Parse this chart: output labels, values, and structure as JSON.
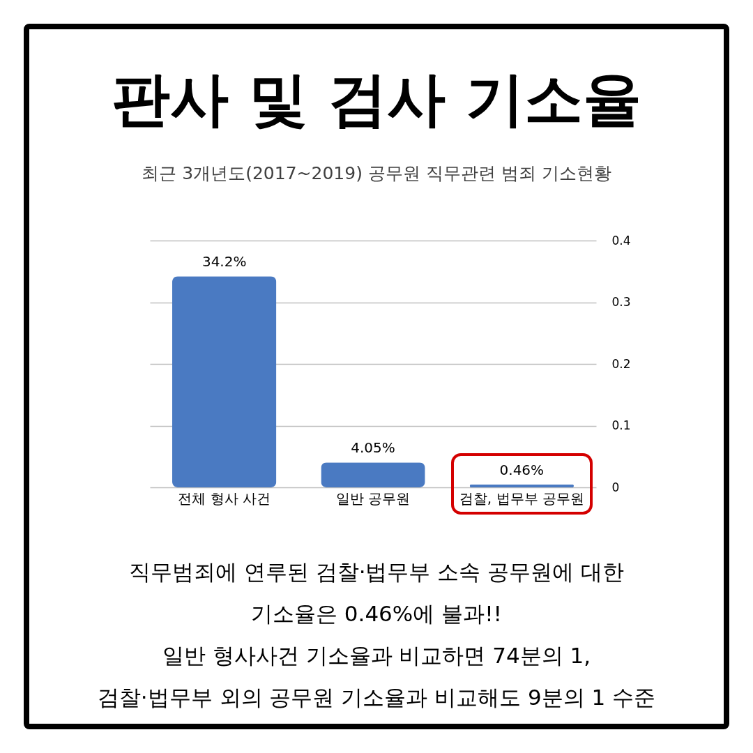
{
  "chart_data": {
    "type": "bar",
    "title": "판사 및 검사 기소율",
    "subtitle": "최근 3개년도(2017~2019) 공무원 직무관련 범죄 기소현황",
    "categories": [
      "전체 형사 사건",
      "일반 공무원",
      "검찰, 법무부 공무원"
    ],
    "values": [
      0.342,
      0.0405,
      0.0046
    ],
    "value_labels": [
      "34.2%",
      "4.05%",
      "0.46%"
    ],
    "color": "#4a7ac2",
    "ylim": [
      0,
      0.4
    ],
    "yticks": [
      0,
      0.1,
      0.2,
      0.3,
      0.4
    ],
    "grid": "y",
    "annotations": [
      "직무범죄에 연루된 검찰·법무부 소속 공무원에 대한",
      "기소율은 0.46%에 불과!!",
      "일반 형사사건 기소율과 비교하면 74분의 1,",
      "검찰·법무부 외의 공무원 기소율과 비교해도 9분의 1 수준"
    ]
  }
}
